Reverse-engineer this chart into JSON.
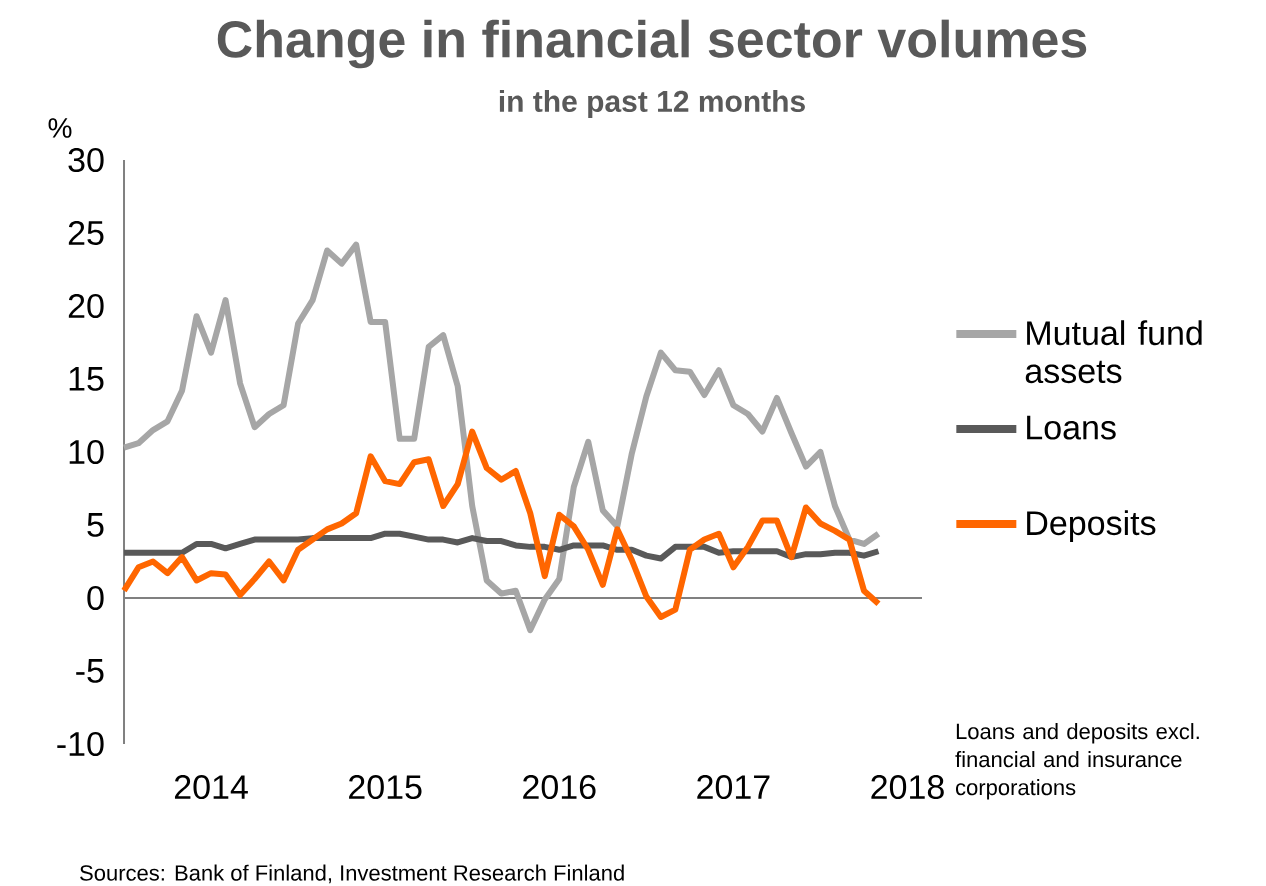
{
  "chart_data": {
    "type": "line",
    "title": "Change in financial sector volumes",
    "subtitle": "in the past 12 months",
    "ylabel": "%",
    "x": [
      "2014-01",
      "2014-02",
      "2014-03",
      "2014-04",
      "2014-05",
      "2014-06",
      "2014-07",
      "2014-08",
      "2014-09",
      "2014-10",
      "2014-11",
      "2014-12",
      "2015-01",
      "2015-02",
      "2015-03",
      "2015-04",
      "2015-05",
      "2015-06",
      "2015-07",
      "2015-08",
      "2015-09",
      "2015-10",
      "2015-11",
      "2015-12",
      "2016-01",
      "2016-02",
      "2016-03",
      "2016-04",
      "2016-05",
      "2016-06",
      "2016-07",
      "2016-08",
      "2016-09",
      "2016-10",
      "2016-11",
      "2016-12",
      "2017-01",
      "2017-02",
      "2017-03",
      "2017-04",
      "2017-05",
      "2017-06",
      "2017-07",
      "2017-08",
      "2017-09",
      "2017-10",
      "2017-11",
      "2017-12",
      "2018-01",
      "2018-02",
      "2018-03",
      "2018-04",
      "2018-05"
    ],
    "series": [
      {
        "name": "Mutual fund assets",
        "color": "#a6a6a6",
        "values": [
          10.3,
          10.6,
          11.5,
          12.1,
          14.2,
          19.3,
          16.8,
          20.4,
          14.7,
          11.7,
          12.6,
          13.2,
          18.8,
          20.4,
          23.8,
          22.9,
          24.2,
          18.9,
          18.9,
          10.9,
          10.9,
          17.2,
          18.0,
          14.5,
          6.3,
          1.2,
          0.3,
          0.5,
          -2.2,
          -0.1,
          1.3,
          7.6,
          10.7,
          6.0,
          4.9,
          9.9,
          13.8,
          16.8,
          15.6,
          15.5,
          13.9,
          15.6,
          13.2,
          12.6,
          11.4,
          13.7,
          11.3,
          9.0,
          10.0,
          6.3,
          4.0,
          3.7,
          4.4
        ]
      },
      {
        "name": "Loans",
        "color": "#595959",
        "values": [
          3.1,
          3.1,
          3.1,
          3.1,
          3.1,
          3.7,
          3.7,
          3.4,
          3.7,
          4.0,
          4.0,
          4.0,
          4.0,
          4.1,
          4.1,
          4.1,
          4.1,
          4.1,
          4.4,
          4.4,
          4.2,
          4.0,
          4.0,
          3.8,
          4.1,
          3.9,
          3.9,
          3.6,
          3.5,
          3.5,
          3.3,
          3.6,
          3.6,
          3.6,
          3.3,
          3.3,
          2.9,
          2.7,
          3.5,
          3.5,
          3.5,
          3.1,
          3.2,
          3.2,
          3.2,
          3.2,
          2.8,
          3.0,
          3.0,
          3.1,
          3.1,
          2.9,
          3.2
        ]
      },
      {
        "name": "Deposits",
        "color": "#ff6600",
        "values": [
          0.5,
          2.1,
          2.5,
          1.7,
          2.8,
          1.2,
          1.7,
          1.6,
          0.2,
          1.3,
          2.5,
          1.2,
          3.3,
          4.0,
          4.7,
          5.1,
          5.8,
          9.7,
          8.0,
          7.8,
          9.3,
          9.5,
          6.3,
          7.8,
          11.4,
          8.9,
          8.1,
          8.7,
          5.8,
          1.5,
          5.7,
          4.9,
          3.3,
          0.9,
          4.7,
          2.6,
          0.1,
          -1.3,
          -0.8,
          3.3,
          4.0,
          4.4,
          2.1,
          3.5,
          5.3,
          5.3,
          2.8,
          6.2,
          5.1,
          4.6,
          4.0,
          0.5,
          -0.4
        ]
      }
    ],
    "xlim": [
      "2014-01",
      "2018-08"
    ],
    "xticks": [
      {
        "value": "2014-07",
        "label": "2014"
      },
      {
        "value": "2015-07",
        "label": "2015"
      },
      {
        "value": "2016-07",
        "label": "2016"
      },
      {
        "value": "2017-07",
        "label": "2017"
      },
      {
        "value": "2018-07",
        "label": "2018"
      }
    ],
    "ylim": [
      -10,
      30
    ],
    "yticks": [
      -10,
      -5,
      0,
      5,
      10,
      15,
      20,
      25,
      30
    ],
    "legend": "right",
    "marker": "none",
    "line_style": "solid",
    "annotations": [
      "Loans and deposits excl. financial and insurance corporations",
      "Sources: Bank of Finland, Investment Research Finland"
    ]
  }
}
